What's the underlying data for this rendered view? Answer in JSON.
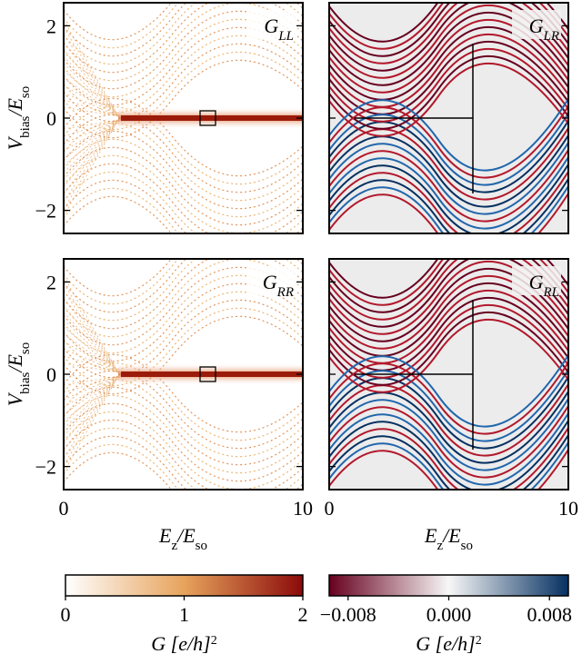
{
  "chart_data": [
    {
      "type": "heatmap",
      "title": {
        "text": "G",
        "sub": "LL"
      },
      "xlim": [
        0,
        10
      ],
      "xticks": [
        0,
        10
      ],
      "ylim": [
        -2.5,
        2.5
      ],
      "yticks": [
        {
          "value": -2,
          "label": "−2"
        },
        0,
        2
      ],
      "ylabel": {
        "text": "V",
        "sub": "bias",
        "text2": "/E",
        "sub2": "so"
      }
    },
    {
      "type": "heatmap",
      "title": {
        "text": "G",
        "sub": "LR"
      },
      "xlim": [
        0,
        10
      ],
      "xticks": [
        0,
        10
      ],
      "ylim": [
        -2.5,
        2.5
      ],
      "yticks": [
        -2,
        0,
        2
      ]
    },
    {
      "type": "heatmap",
      "title": {
        "text": "G",
        "sub": "RR"
      },
      "xlim": [
        0,
        10
      ],
      "xticks": [
        0,
        10
      ],
      "ylim": [
        -2.5,
        2.5
      ],
      "yticks": [
        {
          "value": -2,
          "label": "−2"
        },
        0,
        2
      ],
      "ylabel": {
        "text": "V",
        "sub": "bias",
        "text2": "/E",
        "sub2": "so"
      },
      "xlabel": {
        "text": "E",
        "sub": "z",
        "text2": "/E",
        "sub2": "so"
      }
    },
    {
      "type": "heatmap",
      "title": {
        "text": "G",
        "sub": "RL"
      },
      "xlim": [
        0,
        10
      ],
      "xticks": [
        0,
        10
      ],
      "ylim": [
        -2.5,
        2.5
      ],
      "yticks": [
        -2,
        0,
        2
      ],
      "xlabel": {
        "text": "E",
        "sub": "z",
        "text2": "/E",
        "sub2": "so"
      }
    },
    {
      "type": "colorbar",
      "colors": [
        "#ffffff",
        "#e7a35c",
        "#8b0a0a"
      ],
      "xlim": [
        0,
        2
      ],
      "xticks": [
        0,
        1,
        2
      ],
      "label": {
        "text": "G [e",
        "sup": "2",
        "text2": "/h]"
      }
    },
    {
      "type": "colorbar",
      "colors": [
        "#67001f",
        "#f7f7f7",
        "#053061"
      ],
      "xlim": [
        -0.0095,
        0.0095
      ],
      "xticks": [
        {
          "value": -0.008,
          "label": "−0.008"
        },
        {
          "value": 0,
          "label": "0.000"
        },
        {
          "value": 0.008,
          "label": "0.008"
        }
      ],
      "label": {
        "text": "G [e",
        "sup": "2",
        "text2": "/h]"
      }
    }
  ]
}
